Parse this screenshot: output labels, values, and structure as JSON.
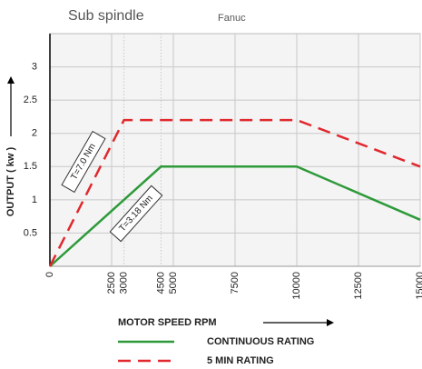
{
  "chart_data": {
    "type": "line",
    "title": "Sub spindle",
    "subtitle": "Fanuc",
    "y_label": "OUTPUT ( kw )",
    "x_label": "MOTOR SPEED   RPM",
    "xlim": [
      0,
      15000
    ],
    "ylim": [
      0,
      3.5
    ],
    "xticks": [
      0,
      2500,
      3000,
      4500,
      5000,
      7500,
      10000,
      12500,
      15000
    ],
    "yticks": [
      0.5,
      1,
      1.5,
      2,
      2.5,
      3
    ],
    "grid": true,
    "series": [
      {
        "name": "CONTINUOUS RATING",
        "color": "#2e9a3a",
        "dashed": false,
        "x": [
          0,
          4500,
          10000,
          15000
        ],
        "values": [
          0,
          1.5,
          1.5,
          0.7
        ]
      },
      {
        "name": "5 MIN RATING",
        "color": "#e0282e",
        "dashed": true,
        "x": [
          0,
          3000,
          10000,
          15000
        ],
        "values": [
          0,
          2.2,
          2.2,
          1.5
        ]
      }
    ],
    "annotations": [
      "T=7.0 Nm",
      "T=3.18 Nm"
    ]
  }
}
